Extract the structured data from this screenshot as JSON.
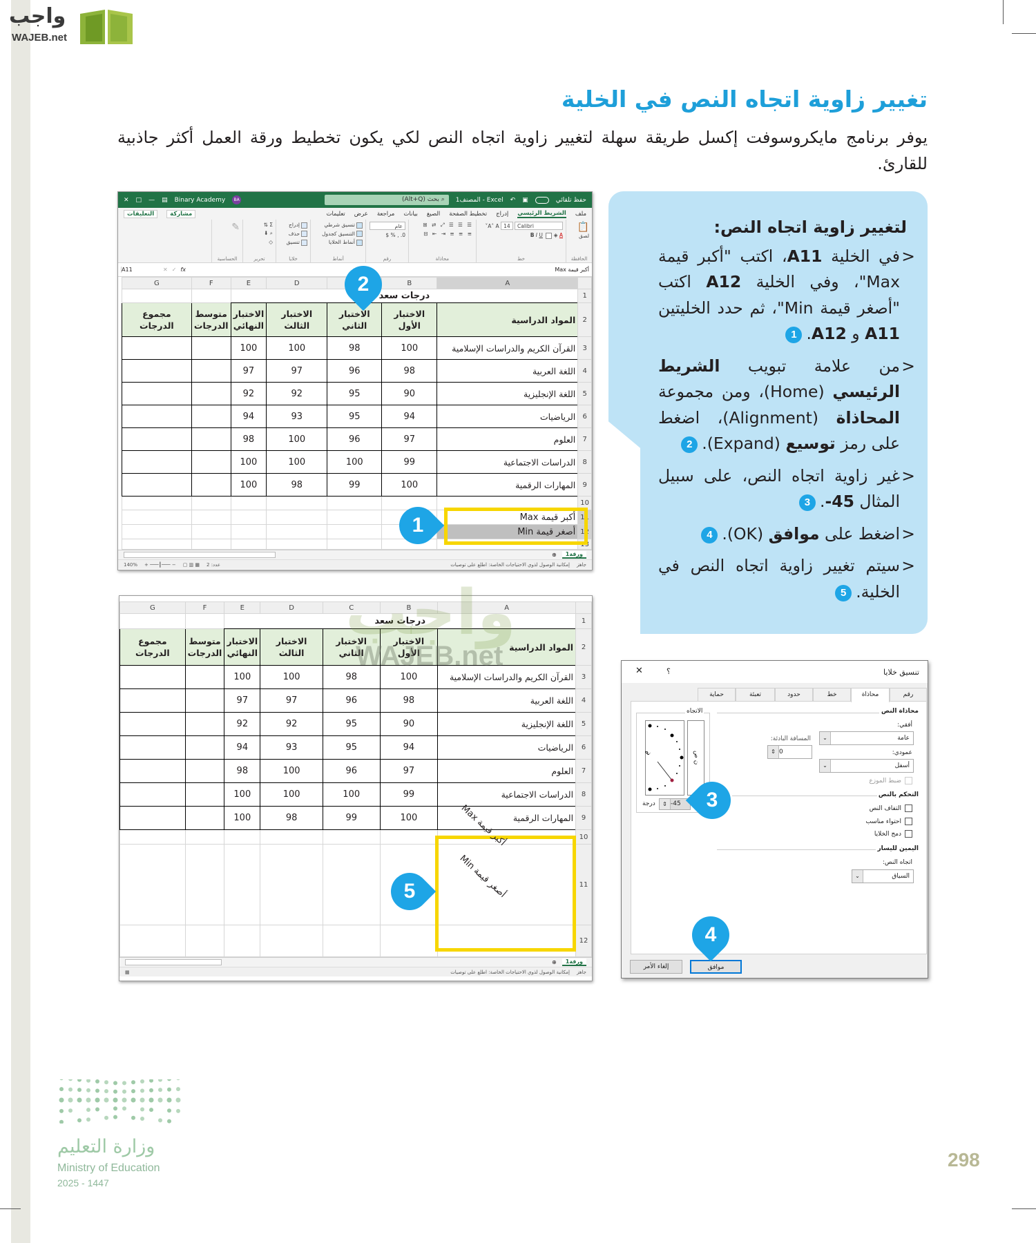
{
  "logo": {
    "ar": "واجب",
    "en": "WAJEB.net"
  },
  "title": "تغيير زاوية اتجاه النص في الخلية",
  "intro": "يوفر برنامج مايكروسوفت إكسل طريقة سهلة لتغيير زاوية اتجاه النص لكي يكون تخطيط ورقة العمل أكثر جاذبية للقارئ.",
  "excel": {
    "autosave": "حفظ تلقائي",
    "doc_title": "Excel - المصنف1",
    "search": "بحث (Alt+Q)",
    "user": "Binary Academy",
    "user_initials": "BA",
    "tabs": [
      "ملف",
      "الشريط الرئيسي",
      "إدراج",
      "تخطيط الصفحة",
      "الصيغ",
      "بيانات",
      "مراجعة",
      "عرض",
      "تعليمات"
    ],
    "share": "مشاركة",
    "comments": "التعليقات",
    "groups": {
      "clipboard": "الحافظة",
      "font": "خط",
      "alignment": "محاذاة",
      "number": "رقم",
      "styles": "أنماط",
      "cells": "خلايا",
      "editing": "تحرير",
      "sensitivity": "الحساسية"
    },
    "paste": "لصق",
    "font_name": "Calibri",
    "font_size": "14",
    "number_format": "عام",
    "styles_items": [
      "تنسيق شرطي",
      "التنسيق كجدول",
      "أنماط الخلايا"
    ],
    "cells_items": [
      "إدراج",
      "حذف",
      "تنسيق"
    ],
    "name_box": "A11",
    "formula": "أكبر قيمة Max",
    "columns": [
      "A",
      "B",
      "C",
      "D",
      "E",
      "F",
      "G"
    ],
    "sheet_title": "درجات سعد",
    "headers": [
      "المواد الدراسية",
      "الاختبار الأول",
      "الاختبار الثاني",
      "الاختبار الثالث",
      "الاختبار النهائي",
      "متوسط الدرجات",
      "مجموع الدرجات"
    ],
    "rows": [
      [
        "القرآن الكريم والدراسات الإسلامية",
        "100",
        "98",
        "100",
        "100"
      ],
      [
        "اللغة العربية",
        "98",
        "96",
        "97",
        "97"
      ],
      [
        "اللغة الإنجليزية",
        "90",
        "95",
        "92",
        "92"
      ],
      [
        "الرياضيات",
        "94",
        "95",
        "93",
        "94"
      ],
      [
        "العلوم",
        "97",
        "96",
        "100",
        "98"
      ],
      [
        "الدراسات الاجتماعية",
        "99",
        "100",
        "100",
        "100"
      ],
      [
        "المهارات الرقمية",
        "100",
        "99",
        "98",
        "100"
      ]
    ],
    "max_label": "أكبر قيمة Max",
    "min_label": "أصغر قيمة Min",
    "sheet_tab": "ورقة1",
    "status_ready": "جاهز",
    "status_access": "إمكانية الوصول لذوي الاحتياجات الخاصة: اطلع على توصيات",
    "status_count": "عدد: 2",
    "zoom": "140%"
  },
  "steps": {
    "heading": "لتغيير زاوية اتجاه النص:",
    "items": [
      {
        "seg": [
          {
            "t": "في الخلية "
          },
          {
            "t": "A11",
            "b": true
          },
          {
            "t": "، اكتب \"أكبر قيمة Max\"، وفي الخلية "
          },
          {
            "t": "A12",
            "b": true
          },
          {
            "t": " اكتب \"أصغر قيمة Min\"، ثم حدد الخليتين "
          },
          {
            "t": "A11",
            "b": true
          },
          {
            "t": " و "
          },
          {
            "t": "A12",
            "b": true
          },
          {
            "t": "."
          }
        ],
        "badge": "1"
      },
      {
        "seg": [
          {
            "t": "من علامة تبويب "
          },
          {
            "t": "الشريط الرئيسي",
            "b": true
          },
          {
            "t": " (Home)، ومن مجموعة "
          },
          {
            "t": "المحاذاة",
            "b": true
          },
          {
            "t": " (Alignment)، اضغط على رمز "
          },
          {
            "t": "توسيع",
            "b": true
          },
          {
            "t": " (Expand)."
          }
        ],
        "badge": "2"
      },
      {
        "seg": [
          {
            "t": "غير زاوية اتجاه النص، على سبيل المثال "
          },
          {
            "t": "45-",
            "b": true
          },
          {
            "t": "."
          }
        ],
        "badge": "3"
      },
      {
        "seg": [
          {
            "t": "اضغط على "
          },
          {
            "t": "موافق",
            "b": true
          },
          {
            "t": " (OK)."
          }
        ],
        "badge": "4"
      },
      {
        "seg": [
          {
            "t": "سيتم تغيير زاوية اتجاه النص في الخلية."
          }
        ],
        "badge": "5"
      }
    ]
  },
  "dialog": {
    "title": "تنسيق خلايا",
    "help": "؟",
    "tabs": [
      "رقم",
      "محاذاة",
      "خط",
      "حدود",
      "تعبئة",
      "حماية"
    ],
    "active_tab": "محاذاة",
    "text_alignment": "محاذاة النص",
    "horizontal_label": "أفقي:",
    "horizontal_value": "عامة",
    "indent_label": "المسافة البادئة:",
    "indent_value": "0",
    "vertical_label": "عمودي:",
    "vertical_value": "أسفل",
    "justify_distributed": "ضبط الموزع",
    "text_control": "التحكم بالنص",
    "wrap_text": "التفاف النص",
    "shrink_to_fit": "احتواء مناسب",
    "merge_cells": "دمج الخلايا",
    "rtl_section": "اليمين لليسار",
    "text_direction_label": "اتجاه النص:",
    "text_direction_value": "السياق",
    "orientation": "الاتجاه",
    "vertical_text": "ن ص",
    "dial_text": "نص",
    "degrees_value": "-45",
    "degrees_label": "درجة",
    "ok": "موافق",
    "cancel": "إلغاء الأمر"
  },
  "callouts": [
    "1",
    "2",
    "3",
    "4",
    "5"
  ],
  "watermark": {
    "ar": "واجب",
    "en": "WAJEB.net"
  },
  "ministry": {
    "ar": "وزارة التعليم",
    "en": "Ministry of Education",
    "year": "2025 - 1447"
  },
  "page_number": "298",
  "colors": {
    "accent": "#1e9fd9",
    "callout": "#1ea5e6",
    "excel_green": "#217346",
    "header_fill": "#e2efda",
    "highlight": "#f7d600",
    "panel": "#bee3f6"
  }
}
